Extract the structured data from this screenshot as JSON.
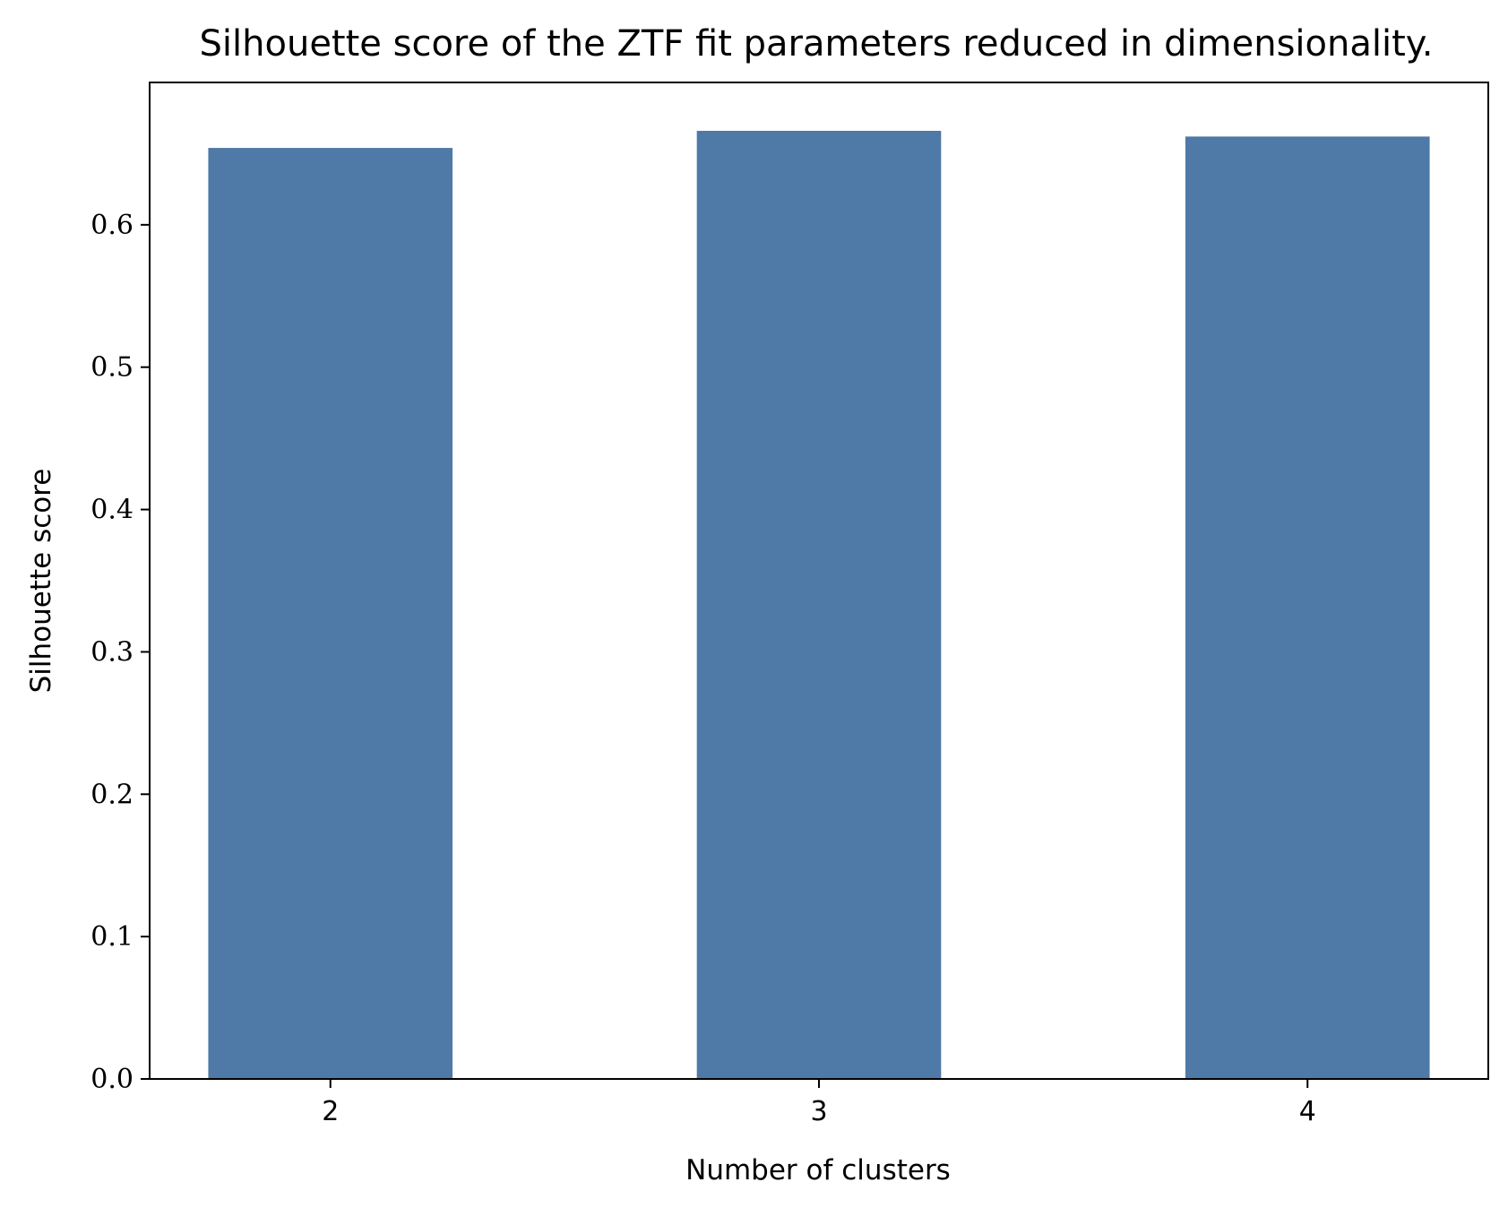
{
  "chart_data": {
    "type": "bar",
    "title": "Silhouette score of the ZTF fit parameters reduced in dimensionality.",
    "xlabel": "Number of clusters",
    "ylabel": "Silhouette score",
    "categories": [
      "2",
      "3",
      "4"
    ],
    "values": [
      0.654,
      0.666,
      0.662
    ],
    "ylim": [
      0,
      0.7
    ],
    "yticks": [
      0.0,
      0.1,
      0.2,
      0.3,
      0.4,
      0.5,
      0.6
    ],
    "ytick_labels": [
      "0.0",
      "0.1",
      "0.2",
      "0.3",
      "0.4",
      "0.5",
      "0.6"
    ],
    "bar_color": "#4f79a6",
    "grid": false,
    "legend": "none"
  }
}
